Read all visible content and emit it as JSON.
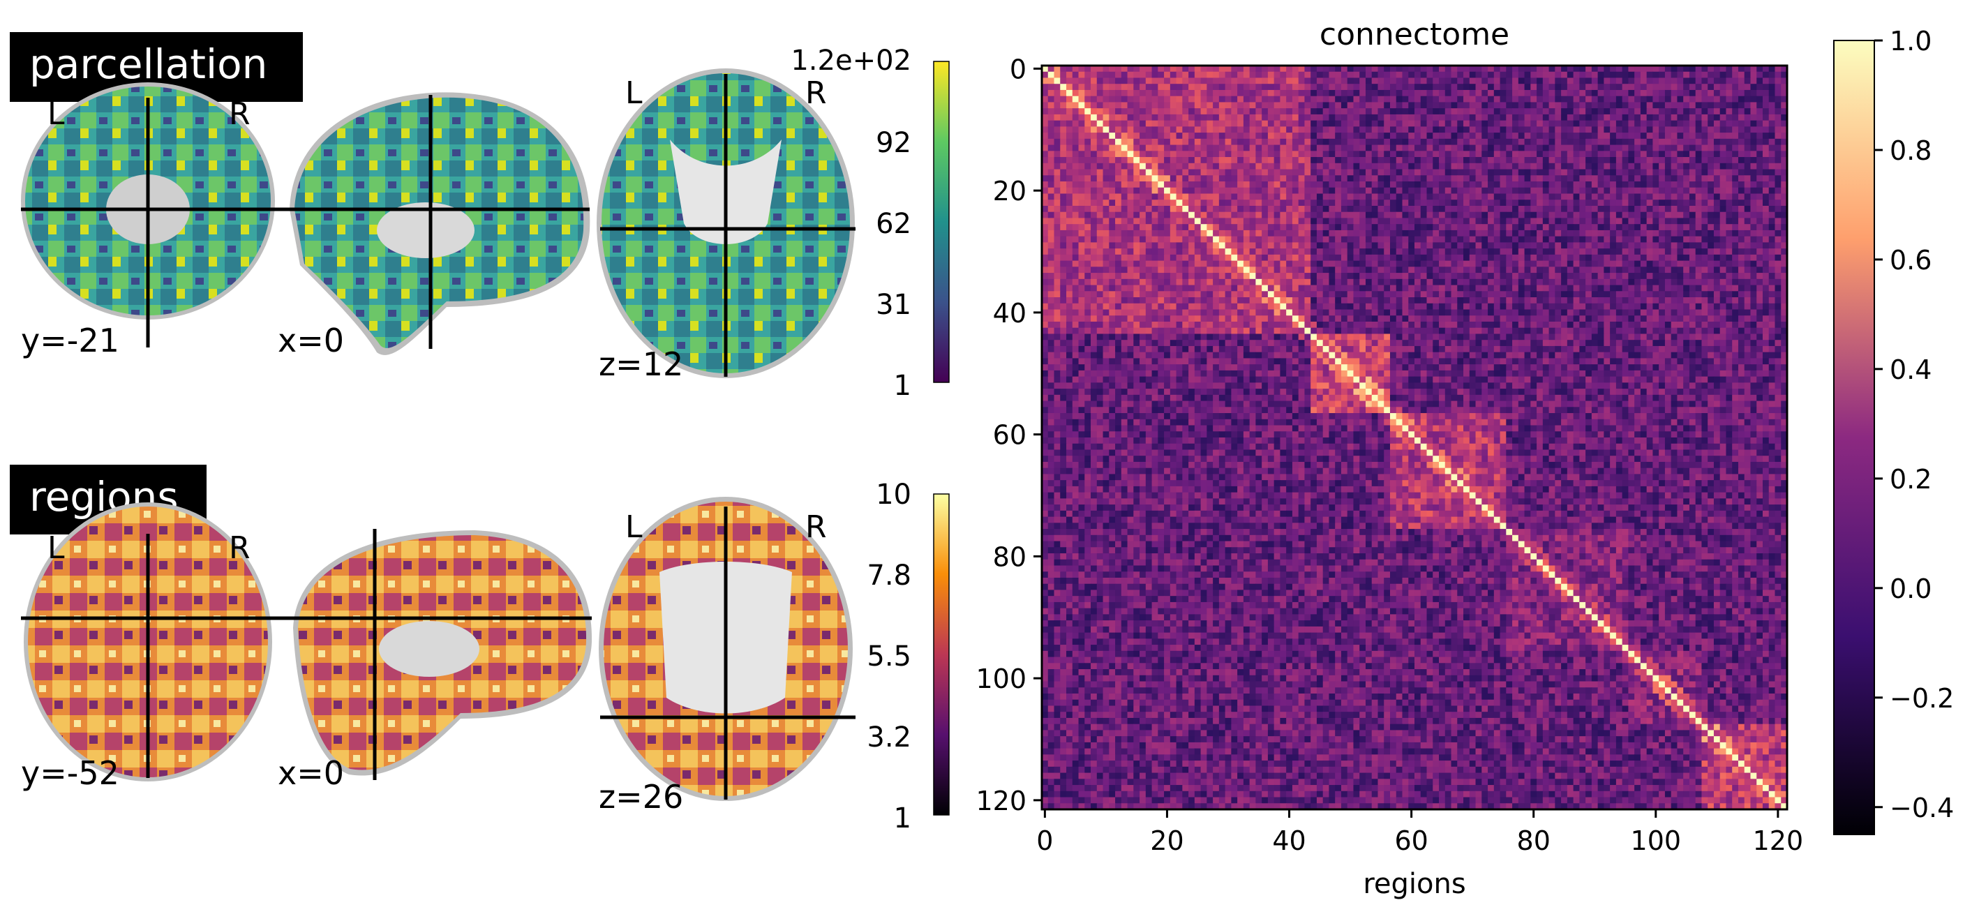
{
  "panels": {
    "parcellation": {
      "title": "parcellation",
      "orientation_left": "L",
      "orientation_right": "R",
      "coords": [
        "y=-21",
        "x=0",
        "z=12"
      ],
      "colorbar": {
        "ticks": [
          "1.2e+02",
          "92",
          "62",
          "31",
          "1"
        ],
        "colormap": "viridis"
      }
    },
    "regions": {
      "title": "regions",
      "orientation_left": "L",
      "orientation_right": "R",
      "coords": [
        "y=-52",
        "x=0",
        "z=26"
      ],
      "colorbar": {
        "ticks": [
          "10",
          "7.8",
          "5.5",
          "3.2",
          "1"
        ],
        "colormap": "inferno"
      }
    }
  },
  "chart_data": {
    "type": "heatmap",
    "title": "connectome",
    "xlabel": "regions",
    "ylabel": "",
    "n": 122,
    "xticks": [
      0,
      20,
      40,
      60,
      80,
      100,
      120
    ],
    "yticks": [
      0,
      20,
      40,
      60,
      80,
      100,
      120
    ],
    "xlim": [
      0,
      121
    ],
    "ylim": [
      121,
      0
    ],
    "colormap": "magma",
    "vmin": -0.45,
    "vmax": 1.0,
    "colorbar_ticks": [
      "1.0",
      "0.8",
      "0.6",
      "0.4",
      "0.2",
      "0.0",
      "−0.2",
      "−0.4"
    ],
    "blocks": [
      {
        "from": 0,
        "to": 43,
        "mean": 0.35
      },
      {
        "from": 44,
        "to": 56,
        "mean": 0.45
      },
      {
        "from": 57,
        "to": 75,
        "mean": 0.38
      },
      {
        "from": 76,
        "to": 95,
        "mean": 0.22
      },
      {
        "from": 96,
        "to": 107,
        "mean": 0.25
      },
      {
        "from": 108,
        "to": 121,
        "mean": 0.42
      }
    ],
    "diagonal": 1.0
  }
}
